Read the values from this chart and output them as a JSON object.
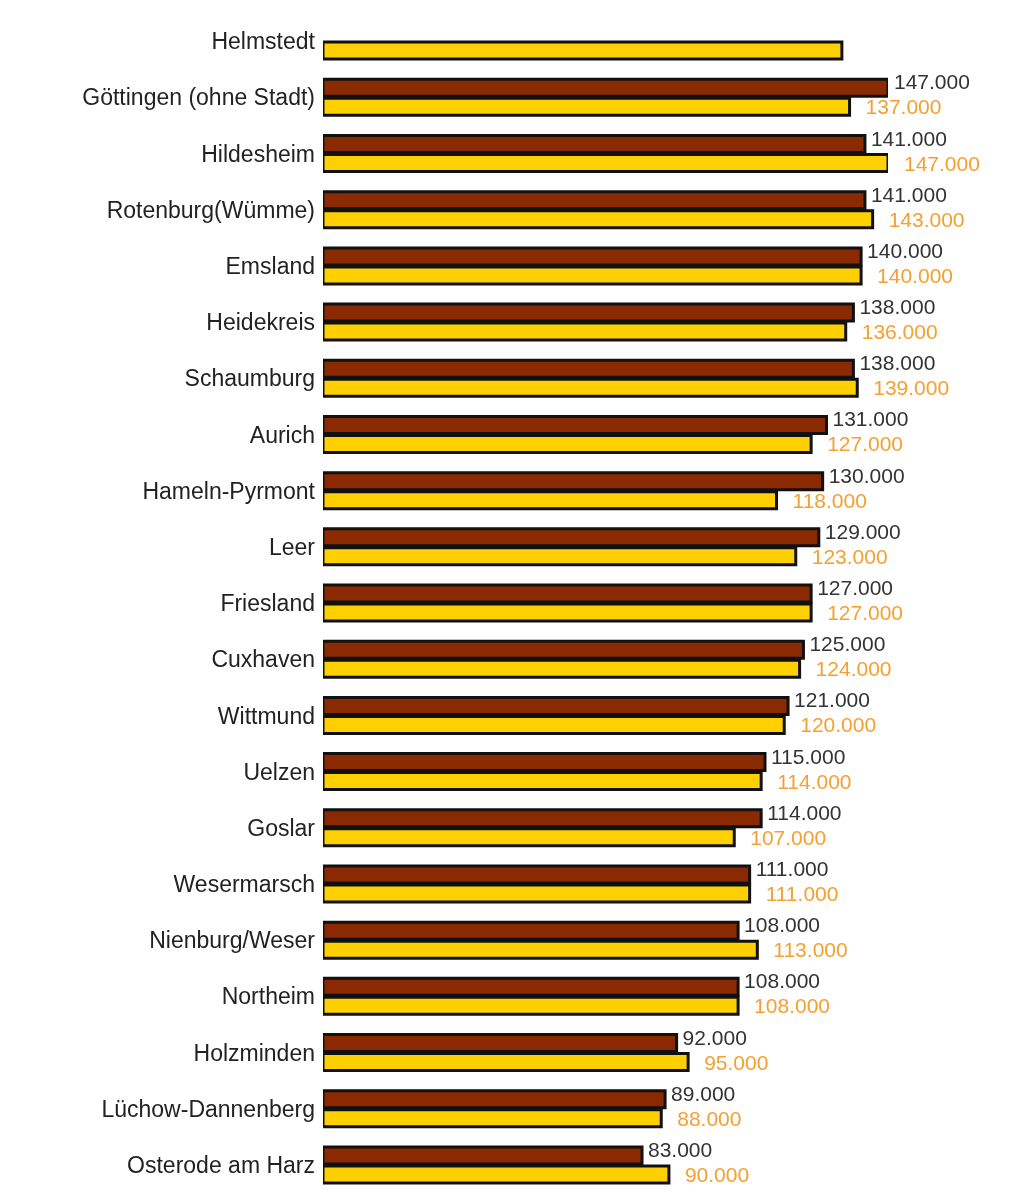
{
  "chart_data": {
    "type": "bar",
    "orientation": "horizontal",
    "categories": [
      "Helmstedt",
      "Göttingen (ohne Stadt)",
      "Hildesheim",
      "Rotenburg(Wümme)",
      "Emsland",
      "Heidekreis",
      "Schaumburg",
      "Aurich",
      "Hameln-Pyrmont",
      "Leer",
      "Friesland",
      "Cuxhaven",
      "Wittmund",
      "Uelzen",
      "Goslar",
      "Wesermarsch",
      "Nienburg/Weser",
      "Northeim",
      "Holzminden",
      "Lüchow-Dannenberg",
      "Osterode am Harz"
    ],
    "series": [
      {
        "color": "#8b2a00",
        "values": [
          null,
          147000,
          141000,
          141000,
          140000,
          138000,
          138000,
          131000,
          130000,
          129000,
          127000,
          125000,
          121000,
          115000,
          114000,
          111000,
          108000,
          108000,
          92000,
          89000,
          83000
        ],
        "value_labels": [
          null,
          "147.000",
          "141.000",
          "141.000",
          "140.000",
          "138.000",
          "138.000",
          "131.000",
          "130.000",
          "129.000",
          "127.000",
          "125.000",
          "121.000",
          "115.000",
          "114.000",
          "111.000",
          "108.000",
          "108.000",
          "92.000",
          "89.000",
          "83.000"
        ]
      },
      {
        "color": "#ffd000",
        "values": [
          135000,
          137000,
          147000,
          143000,
          140000,
          136000,
          139000,
          127000,
          118000,
          123000,
          127000,
          124000,
          120000,
          114000,
          107000,
          111000,
          113000,
          108000,
          95000,
          88000,
          90000
        ],
        "value_labels": [
          null,
          "137.000",
          "147.000",
          "143.000",
          "140.000",
          "136.000",
          "139.000",
          "127.000",
          "118.000",
          "123.000",
          "127.000",
          "124.000",
          "120.000",
          "114.000",
          "107.000",
          "111.000",
          "113.000",
          "108.000",
          "95.000",
          "88.000",
          "90.000"
        ]
      }
    ],
    "legend": false,
    "grid": false
  }
}
